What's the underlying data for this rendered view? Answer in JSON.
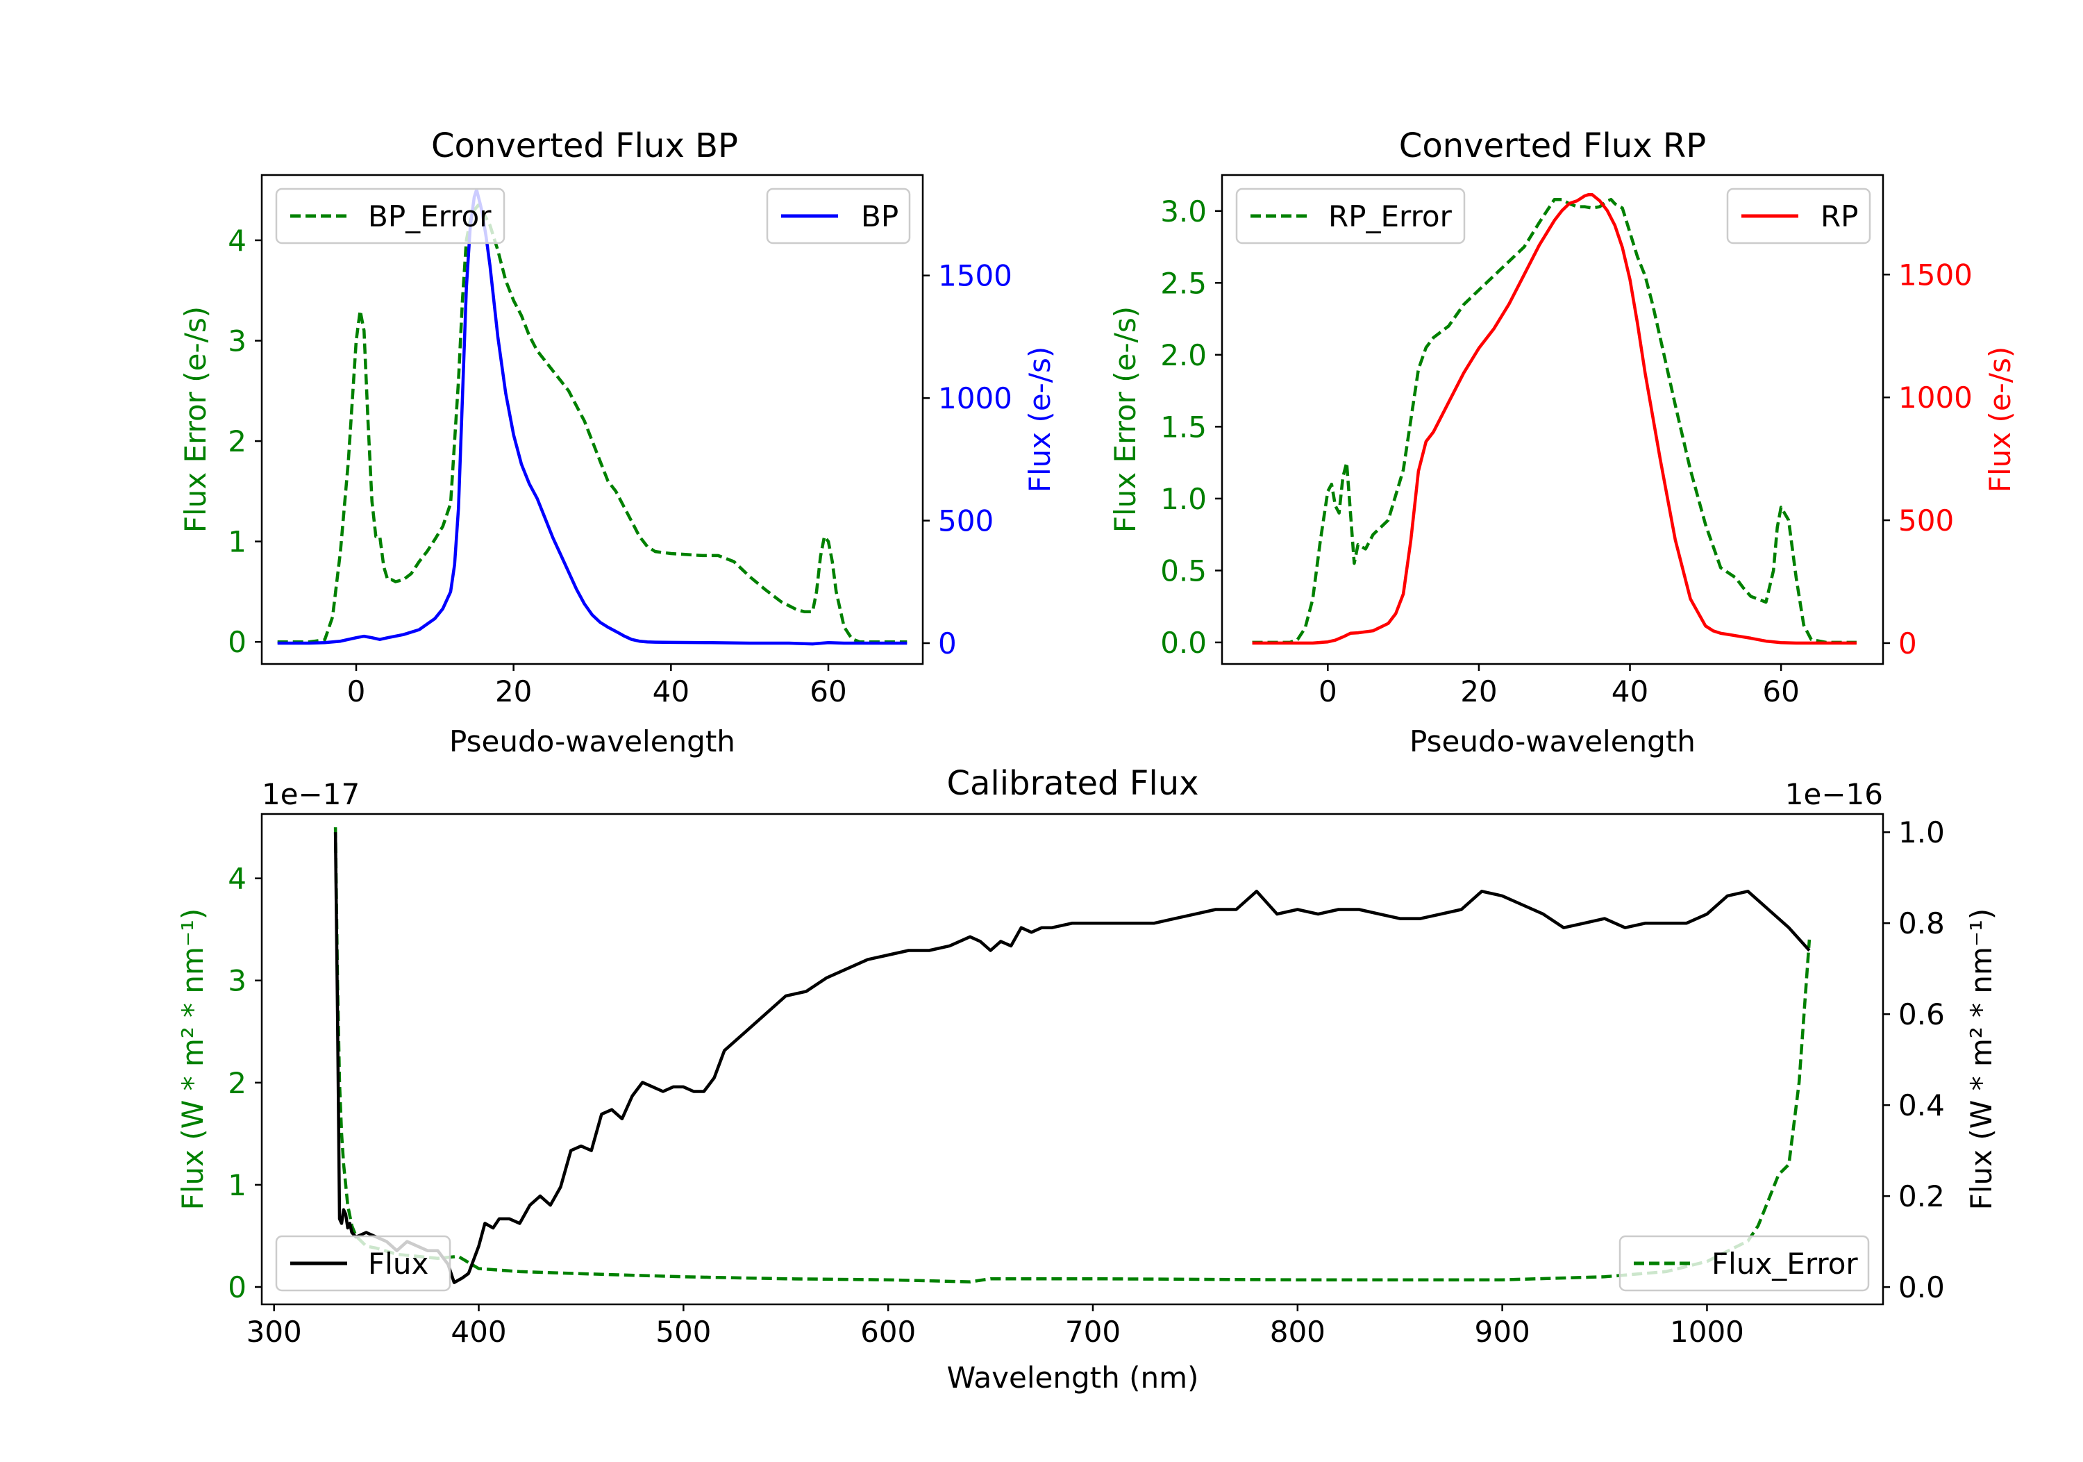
{
  "colors": {
    "bp": "#0000ff",
    "rp": "#ff0000",
    "error": "#008000",
    "flux": "#000000",
    "axis": "#000000"
  },
  "chart_data": [
    {
      "id": "bp",
      "type": "line",
      "title": "Converted Flux BP",
      "xlabel": "Pseudo-wavelength",
      "ylabel_left": "Flux Error (e-/s)",
      "ylabel_right": "Flux (e-/s)",
      "xlim": [
        -12,
        72
      ],
      "ylim_left": [
        -0.22,
        4.65
      ],
      "ylim_right": [
        -85,
        1910
      ],
      "xticks": [
        0,
        20,
        40,
        60
      ],
      "yticks_left": [
        0,
        1,
        2,
        3,
        4
      ],
      "yticks_right": [
        0,
        500,
        1000,
        1500
      ],
      "series": [
        {
          "name": "BP_Error",
          "axis": "left",
          "style": "dashed",
          "color": "#008000",
          "x": [
            -10,
            -6,
            -4,
            -3,
            -2,
            -1,
            0,
            0.5,
            1,
            1.5,
            2,
            2.5,
            3,
            3.5,
            4,
            4.5,
            5,
            6,
            7,
            8,
            9,
            10,
            11,
            12,
            13,
            13.5,
            14,
            14.5,
            15,
            15.5,
            16,
            17,
            18,
            19,
            20,
            21,
            22,
            23,
            24,
            25,
            26,
            27,
            28,
            29,
            30,
            31,
            32,
            33,
            34,
            35,
            36,
            37,
            38,
            40,
            42,
            44,
            46,
            48,
            50,
            52,
            54,
            56,
            57,
            58,
            58.5,
            59,
            59.5,
            60,
            60.5,
            61,
            62,
            63,
            64,
            66,
            68,
            70
          ],
          "values": [
            0,
            0,
            0.02,
            0.25,
            0.9,
            1.8,
            3.0,
            3.3,
            3.1,
            2.2,
            1.4,
            1.05,
            1.05,
            0.75,
            0.62,
            0.62,
            0.6,
            0.62,
            0.68,
            0.8,
            0.9,
            1.02,
            1.15,
            1.38,
            2.6,
            3.4,
            4.0,
            4.2,
            4.3,
            4.35,
            4.3,
            4.15,
            3.9,
            3.6,
            3.4,
            3.25,
            3.05,
            2.9,
            2.8,
            2.7,
            2.6,
            2.5,
            2.35,
            2.2,
            2.0,
            1.8,
            1.6,
            1.5,
            1.35,
            1.2,
            1.05,
            0.95,
            0.9,
            0.88,
            0.87,
            0.86,
            0.86,
            0.8,
            0.65,
            0.52,
            0.4,
            0.32,
            0.3,
            0.3,
            0.5,
            0.85,
            1.05,
            1.0,
            0.8,
            0.5,
            0.15,
            0.03,
            0,
            0,
            0,
            0
          ]
        },
        {
          "name": "BP",
          "axis": "right",
          "style": "solid",
          "color": "#0000ff",
          "x": [
            -10,
            -8,
            -6,
            -4,
            -2,
            0,
            1,
            2,
            3,
            4,
            6,
            8,
            10,
            11,
            12,
            12.5,
            13,
            13.5,
            14,
            14.5,
            15,
            15.3,
            15.7,
            16,
            16.5,
            17,
            18,
            19,
            20,
            21,
            22,
            23,
            24,
            25,
            26,
            27,
            28,
            29,
            30,
            31,
            32,
            33,
            34,
            35,
            36,
            37,
            38,
            40,
            45,
            50,
            55,
            58,
            60,
            62,
            64,
            66,
            68,
            70
          ],
          "values": [
            0,
            0,
            0,
            2,
            8,
            22,
            28,
            22,
            15,
            22,
            35,
            55,
            100,
            140,
            210,
            320,
            550,
            1000,
            1450,
            1700,
            1820,
            1850,
            1800,
            1760,
            1660,
            1540,
            1250,
            1020,
            850,
            730,
            650,
            590,
            510,
            430,
            360,
            290,
            220,
            160,
            115,
            85,
            65,
            48,
            30,
            15,
            8,
            5,
            4,
            3,
            2,
            0,
            0,
            -3,
            2,
            0,
            0,
            0,
            0,
            0
          ]
        }
      ],
      "legend": [
        {
          "label": "BP_Error",
          "position": "upper-left"
        },
        {
          "label": "BP",
          "position": "upper-right"
        }
      ]
    },
    {
      "id": "rp",
      "type": "line",
      "title": "Converted Flux RP",
      "xlabel": "Pseudo-wavelength",
      "ylabel_left": "Flux Error (e-/s)",
      "ylabel_right": "Flux (e-/s)",
      "xlim": [
        -14,
        73.5
      ],
      "ylim_left": [
        -0.15,
        3.25
      ],
      "ylim_right": [
        -85,
        1905
      ],
      "xticks": [
        0,
        20,
        40,
        60
      ],
      "yticks_left": [
        0.0,
        0.5,
        1.0,
        1.5,
        2.0,
        2.5,
        3.0
      ],
      "ytick_labels_left": [
        "0.0",
        "0.5",
        "1.0",
        "1.5",
        "2.0",
        "2.5",
        "3.0"
      ],
      "yticks_right": [
        0,
        500,
        1000,
        1500
      ],
      "series": [
        {
          "name": "RP_Error",
          "axis": "left",
          "style": "dashed",
          "color": "#008000",
          "x": [
            -10,
            -5,
            -4,
            -3,
            -2,
            -1,
            0,
            0.5,
            1,
            1.5,
            2,
            2.5,
            3,
            3.5,
            4,
            5,
            6,
            8,
            10,
            11,
            12,
            13,
            14,
            16,
            18,
            20,
            22,
            24,
            26,
            28,
            29,
            30,
            31,
            32,
            33,
            34,
            35,
            36,
            37,
            37.5,
            38,
            39,
            40,
            41,
            42,
            43,
            44,
            46,
            48,
            50,
            52,
            54,
            55,
            56,
            57,
            58,
            59,
            59.5,
            60,
            61,
            62,
            63,
            64,
            66,
            68,
            70
          ],
          "values": [
            0,
            0,
            0.02,
            0.1,
            0.3,
            0.7,
            1.05,
            1.1,
            0.95,
            0.9,
            1.15,
            1.25,
            0.9,
            0.55,
            0.68,
            0.65,
            0.75,
            0.85,
            1.2,
            1.55,
            1.9,
            2.05,
            2.12,
            2.2,
            2.35,
            2.45,
            2.55,
            2.65,
            2.75,
            2.92,
            3.0,
            3.08,
            3.08,
            3.05,
            3.03,
            3.03,
            3.02,
            3.03,
            3.07,
            3.08,
            3.05,
            3.02,
            2.85,
            2.68,
            2.55,
            2.35,
            2.12,
            1.65,
            1.2,
            0.82,
            0.52,
            0.45,
            0.38,
            0.32,
            0.3,
            0.28,
            0.5,
            0.8,
            0.94,
            0.85,
            0.45,
            0.12,
            0.02,
            0,
            0,
            0
          ]
        },
        {
          "name": "RP",
          "axis": "right",
          "style": "solid",
          "color": "#ff0000",
          "x": [
            -10,
            -5,
            -2,
            0,
            1,
            2,
            3,
            4,
            6,
            8,
            9,
            10,
            11,
            12,
            13,
            14,
            16,
            18,
            20,
            22,
            24,
            26,
            28,
            30,
            31,
            32,
            33,
            34,
            34.5,
            35,
            36,
            37,
            38,
            39,
            40,
            41,
            42,
            44,
            46,
            48,
            50,
            51,
            52,
            53,
            54,
            56,
            58,
            60,
            62,
            64,
            66,
            68,
            70
          ],
          "values": [
            0,
            0,
            0,
            5,
            12,
            25,
            40,
            42,
            50,
            80,
            120,
            200,
            420,
            700,
            820,
            860,
            980,
            1100,
            1200,
            1280,
            1380,
            1500,
            1620,
            1720,
            1760,
            1790,
            1800,
            1820,
            1825,
            1825,
            1800,
            1760,
            1700,
            1610,
            1480,
            1300,
            1100,
            750,
            420,
            180,
            70,
            50,
            40,
            35,
            30,
            20,
            8,
            2,
            0,
            0,
            0,
            0,
            0
          ]
        }
      ],
      "legend": [
        {
          "label": "RP_Error",
          "position": "upper-left"
        },
        {
          "label": "RP",
          "position": "upper-right"
        }
      ]
    },
    {
      "id": "calibrated",
      "type": "line",
      "title": "Calibrated Flux",
      "xlabel": "Wavelength (nm)",
      "ylabel_left": "Flux (W * m² * nm⁻¹)",
      "ylabel_right": "Flux (W * m² * nm⁻¹)",
      "offset_left": "1e−17",
      "offset_right": "1e−16",
      "xlim": [
        294,
        1086
      ],
      "ylim_left": [
        -0.17,
        4.63
      ],
      "ylim_right": [
        -0.038,
        1.04
      ],
      "xticks": [
        300,
        400,
        500,
        600,
        700,
        800,
        900,
        1000
      ],
      "yticks_left": [
        0,
        1,
        2,
        3,
        4
      ],
      "yticks_right": [
        0.0,
        0.2,
        0.4,
        0.6,
        0.8,
        1.0
      ],
      "ytick_labels_right": [
        "0.0",
        "0.2",
        "0.4",
        "0.6",
        "0.8",
        "1.0"
      ],
      "series": [
        {
          "name": "Flux_Error",
          "axis": "left",
          "style": "dashed",
          "color": "#008000",
          "x": [
            330,
            331,
            332,
            333,
            334,
            335,
            336,
            338,
            340,
            345,
            350,
            360,
            370,
            380,
            390,
            400,
            420,
            450,
            500,
            550,
            600,
            640,
            650,
            700,
            800,
            900,
            950,
            980,
            1000,
            1010,
            1020,
            1025,
            1030,
            1035,
            1040,
            1045,
            1050
          ],
          "values": [
            4.5,
            3.0,
            2.0,
            1.5,
            1.2,
            1.0,
            0.8,
            0.6,
            0.5,
            0.4,
            0.38,
            0.32,
            0.3,
            0.28,
            0.3,
            0.18,
            0.15,
            0.13,
            0.1,
            0.08,
            0.07,
            0.05,
            0.08,
            0.08,
            0.07,
            0.07,
            0.1,
            0.15,
            0.25,
            0.35,
            0.45,
            0.6,
            0.85,
            1.1,
            1.2,
            2.0,
            3.4
          ]
        },
        {
          "name": "Flux",
          "axis": "right",
          "style": "solid",
          "color": "#000000",
          "x": [
            330,
            331,
            332,
            333,
            334,
            335,
            336,
            337,
            338,
            340,
            345,
            350,
            355,
            360,
            365,
            370,
            375,
            380,
            385,
            388,
            392,
            395,
            400,
            403,
            407,
            410,
            415,
            420,
            425,
            430,
            435,
            440,
            445,
            450,
            455,
            460,
            465,
            470,
            475,
            480,
            485,
            490,
            495,
            500,
            505,
            510,
            515,
            520,
            530,
            540,
            550,
            560,
            570,
            580,
            590,
            600,
            610,
            620,
            630,
            640,
            645,
            650,
            655,
            660,
            665,
            670,
            675,
            680,
            690,
            700,
            710,
            720,
            730,
            740,
            750,
            760,
            770,
            780,
            790,
            800,
            810,
            820,
            830,
            840,
            850,
            860,
            870,
            880,
            890,
            900,
            910,
            920,
            930,
            940,
            950,
            960,
            970,
            980,
            990,
            1000,
            1010,
            1020,
            1030,
            1040,
            1050
          ],
          "values": [
            1.0,
            0.6,
            0.15,
            0.14,
            0.17,
            0.16,
            0.13,
            0.14,
            0.12,
            0.11,
            0.12,
            0.11,
            0.1,
            0.08,
            0.1,
            0.09,
            0.08,
            0.08,
            0.05,
            0.01,
            0.02,
            0.03,
            0.09,
            0.14,
            0.13,
            0.15,
            0.15,
            0.14,
            0.18,
            0.2,
            0.18,
            0.22,
            0.3,
            0.31,
            0.3,
            0.38,
            0.39,
            0.37,
            0.42,
            0.45,
            0.44,
            0.43,
            0.44,
            0.44,
            0.43,
            0.43,
            0.46,
            0.52,
            0.56,
            0.6,
            0.64,
            0.65,
            0.68,
            0.7,
            0.72,
            0.73,
            0.74,
            0.74,
            0.75,
            0.77,
            0.76,
            0.74,
            0.76,
            0.75,
            0.79,
            0.78,
            0.79,
            0.79,
            0.8,
            0.8,
            0.8,
            0.8,
            0.8,
            0.81,
            0.82,
            0.83,
            0.83,
            0.87,
            0.82,
            0.83,
            0.82,
            0.83,
            0.83,
            0.82,
            0.81,
            0.81,
            0.82,
            0.83,
            0.87,
            0.86,
            0.84,
            0.82,
            0.79,
            0.8,
            0.81,
            0.79,
            0.8,
            0.8,
            0.8,
            0.82,
            0.86,
            0.87,
            0.83,
            0.79,
            0.74
          ]
        }
      ],
      "legend": [
        {
          "label": "Flux",
          "position": "lower-left"
        },
        {
          "label": "Flux_Error",
          "position": "lower-right"
        }
      ]
    }
  ]
}
